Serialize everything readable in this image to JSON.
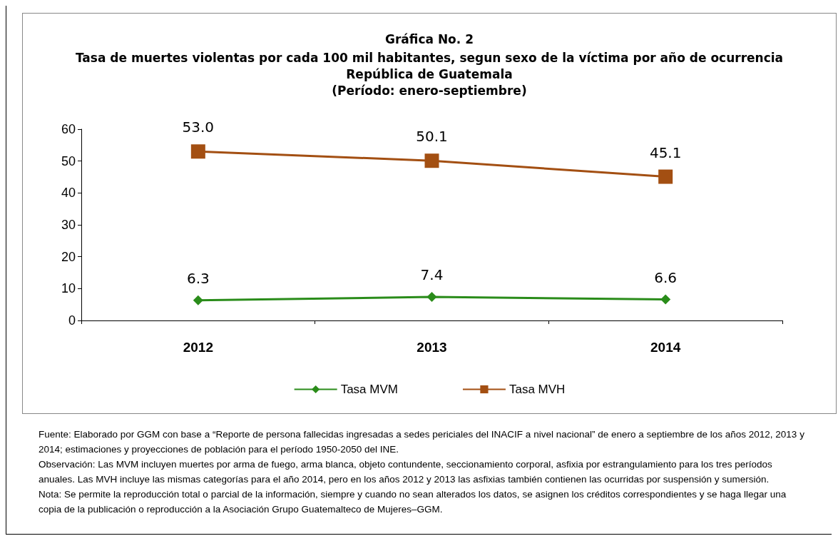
{
  "chart_data": {
    "type": "line",
    "title": "Gráfica No. 2",
    "subtitle": "Tasa de muertes violentas por cada 100 mil habitantes, segun sexo de la víctima por año de ocurrencia\nRepública de Guatemala\n(Período: enero-septiembre)",
    "categories": [
      "2012",
      "2013",
      "2014"
    ],
    "series": [
      {
        "name": "Tasa MVM",
        "color": "#2a8c1a",
        "values": [
          6.3,
          7.4,
          6.6
        ],
        "value_labels": [
          "6.3",
          "7.4",
          "6.6"
        ],
        "marker": "diamond"
      },
      {
        "name": "Tasa MVH",
        "color": "#a34f12",
        "values": [
          53.0,
          50.1,
          45.1
        ],
        "value_labels": [
          "53.0",
          "50.1",
          "45.1"
        ],
        "marker": "square"
      }
    ],
    "ylim": [
      0,
      60
    ],
    "yticks": [
      0,
      10,
      20,
      30,
      40,
      50,
      60
    ],
    "grid": false,
    "legend": "bottom",
    "line_style": "solid",
    "annotations": [
      "Fuente: Elaborado por GGM con base a “Reporte de persona fallecidas ingresadas a sedes periciales del INACIF a nivel nacional” de enero a septiembre de los años 2012, 2013 y 2014; estimaciones y proyecciones de población para el período 1950-2050 del INE.",
      "Observación: Las MVM incluyen muertes por arma de fuego, arma blanca, objeto contundente, seccionamiento corporal, asfixia por estrangulamiento para los tres períodos anuales.  Las MVH incluye las mismas categorías para el año 2014, pero en los años 2012 y 2013 las asfixias también contienen las ocurridas por suspensión y sumersión.",
      "Nota: Se permite la reproducción total o parcial de la información, siempre y cuando no sean alterados los datos,  se asignen los créditos correspondientes y se haga llegar una copia de la publicación o reproducción a la Asociación Grupo Guatemalteco de Mujeres–GGM."
    ]
  }
}
